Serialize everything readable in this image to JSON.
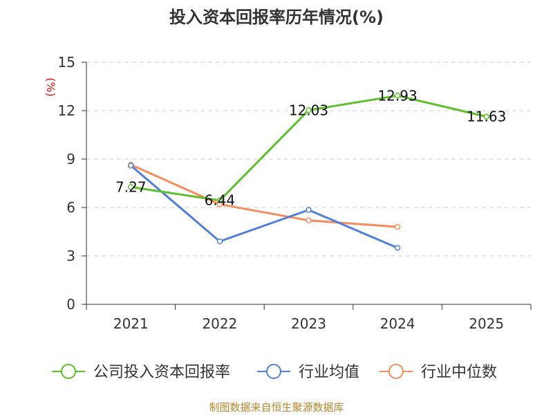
{
  "chart_data": {
    "type": "line",
    "title": "投入资本回报率历年情况(%)",
    "unit_label": "(%)",
    "categories": [
      "2021",
      "2022",
      "2023",
      "2024",
      "2025"
    ],
    "ylim": [
      0,
      15
    ],
    "yticks": [
      0,
      3,
      6,
      9,
      12,
      15
    ],
    "grid": true,
    "legend_position": "bottom",
    "series": [
      {
        "name": "公司投入资本回报率",
        "color": "#5cc126",
        "values": [
          7.27,
          6.44,
          12.03,
          12.93,
          11.63
        ],
        "labels": [
          "7.27",
          "6.44",
          "12.03",
          "12.93",
          "11.63"
        ]
      },
      {
        "name": "行业均值",
        "color": "#4e7fdc",
        "values": [
          8.6,
          3.9,
          5.85,
          3.5,
          null
        ]
      },
      {
        "name": "行业中位数",
        "color": "#f58c5b",
        "values": [
          8.65,
          6.2,
          5.2,
          4.8,
          null
        ]
      }
    ]
  },
  "source_text": "制图数据来自恒生聚源数据库"
}
